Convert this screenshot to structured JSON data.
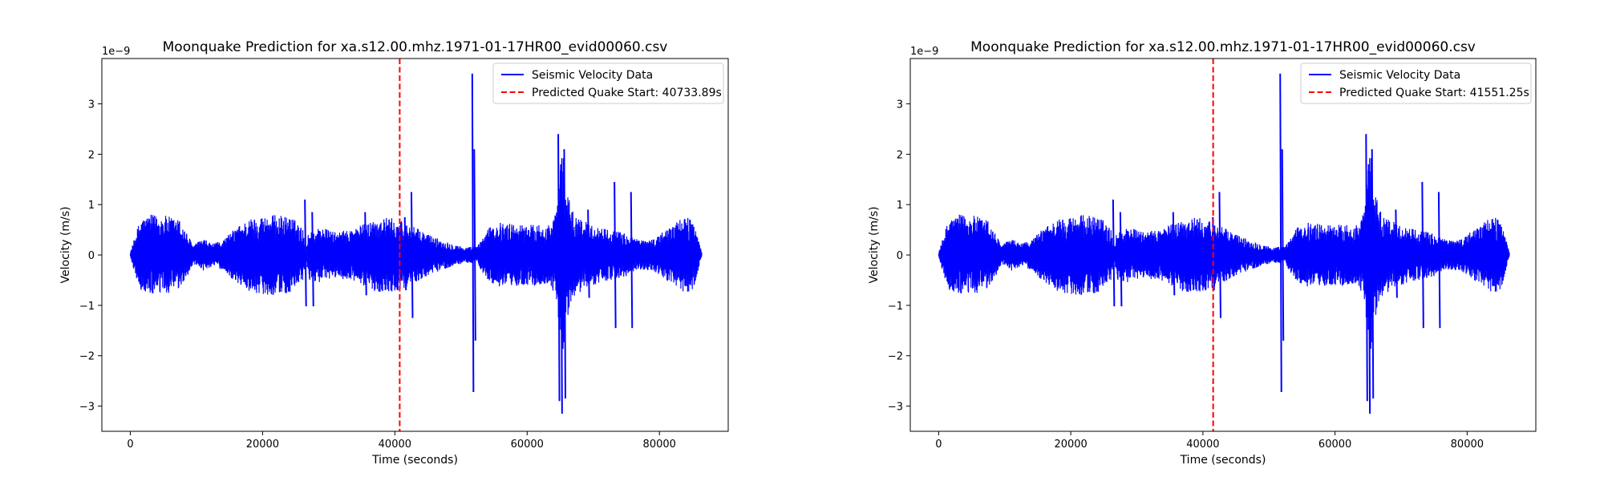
{
  "chart_data": [
    {
      "type": "line",
      "title": "Moonquake Prediction for xa.s12.00.mhz.1971-01-17HR00_evid00060.csv",
      "xlabel": "Time (seconds)",
      "ylabel": "Velocity (m/s)",
      "y_scale_label": "1e−9",
      "xlim": [
        -4300,
        90400
      ],
      "ylim": [
        -3.5,
        3.9
      ],
      "xticks": [
        0,
        20000,
        40000,
        60000,
        80000
      ],
      "xtick_labels": [
        "0",
        "20000",
        "40000",
        "60000",
        "80000"
      ],
      "yticks": [
        -3,
        -2,
        -1,
        0,
        1,
        2,
        3
      ],
      "ytick_labels": [
        "−3",
        "−2",
        "−1",
        "0",
        "1",
        "2",
        "3"
      ],
      "grid": false,
      "legend_position": "top-right",
      "series": [
        {
          "name": "Seismic Velocity Data",
          "color": "#0000ff",
          "style": "solid",
          "x_start": 0,
          "x_end": 86400,
          "envelope_points": [
            [
              0,
              0.05
            ],
            [
              1500,
              0.72
            ],
            [
              3000,
              0.8
            ],
            [
              5500,
              0.78
            ],
            [
              7500,
              0.7
            ],
            [
              8500,
              0.45
            ],
            [
              9500,
              0.2
            ],
            [
              11000,
              0.32
            ],
            [
              12500,
              0.22
            ],
            [
              14000,
              0.3
            ],
            [
              16000,
              0.55
            ],
            [
              18000,
              0.72
            ],
            [
              20000,
              0.78
            ],
            [
              22000,
              0.8
            ],
            [
              24500,
              0.75
            ],
            [
              26200,
              0.5
            ],
            [
              26500,
              0.05
            ],
            [
              27000,
              0.5
            ],
            [
              29000,
              0.55
            ],
            [
              31000,
              0.45
            ],
            [
              33000,
              0.5
            ],
            [
              35000,
              0.6
            ],
            [
              37000,
              0.72
            ],
            [
              39000,
              0.75
            ],
            [
              41000,
              0.68
            ],
            [
              43000,
              0.55
            ],
            [
              45000,
              0.42
            ],
            [
              47000,
              0.3
            ],
            [
              49000,
              0.22
            ],
            [
              50500,
              0.15
            ],
            [
              52500,
              0.18
            ],
            [
              54000,
              0.52
            ],
            [
              56000,
              0.65
            ],
            [
              58000,
              0.62
            ],
            [
              60000,
              0.6
            ],
            [
              62000,
              0.62
            ],
            [
              63500,
              0.6
            ],
            [
              64500,
              0.9
            ],
            [
              65200,
              2.2
            ],
            [
              66000,
              1.3
            ],
            [
              67000,
              0.85
            ],
            [
              69000,
              0.65
            ],
            [
              71000,
              0.55
            ],
            [
              73000,
              0.5
            ],
            [
              75000,
              0.42
            ],
            [
              77000,
              0.3
            ],
            [
              79000,
              0.32
            ],
            [
              81000,
              0.5
            ],
            [
              83000,
              0.72
            ],
            [
              85000,
              0.75
            ],
            [
              86400,
              0.05
            ]
          ],
          "spikes": [
            [
              26400,
              1.1,
              -1.02
            ],
            [
              27500,
              0.85,
              -1.02
            ],
            [
              35500,
              0.85,
              -0.8
            ],
            [
              41500,
              0.75,
              -0.7
            ],
            [
              42500,
              1.25,
              -1.25
            ],
            [
              51700,
              3.6,
              -2.72
            ],
            [
              52000,
              2.1,
              -1.7
            ],
            [
              64700,
              2.4,
              -2.9
            ],
            [
              65100,
              1.8,
              -3.15
            ],
            [
              65600,
              2.1,
              -2.85
            ],
            [
              69200,
              0.9,
              -0.85
            ],
            [
              73200,
              1.45,
              -1.45
            ],
            [
              75700,
              1.25,
              -1.45
            ]
          ]
        },
        {
          "name": "Predicted Quake Start: 40733.89s",
          "color": "#ff0000",
          "style": "dashed",
          "x": 40733.89
        }
      ]
    },
    {
      "type": "line",
      "title": "Moonquake Prediction for xa.s12.00.mhz.1971-01-17HR00_evid00060.csv",
      "xlabel": "Time (seconds)",
      "ylabel": "Velocity (m/s)",
      "y_scale_label": "1e−9",
      "xlim": [
        -4300,
        90400
      ],
      "ylim": [
        -3.5,
        3.9
      ],
      "xticks": [
        0,
        20000,
        40000,
        60000,
        80000
      ],
      "xtick_labels": [
        "0",
        "20000",
        "40000",
        "60000",
        "80000"
      ],
      "yticks": [
        -3,
        -2,
        -1,
        0,
        1,
        2,
        3
      ],
      "ytick_labels": [
        "−3",
        "−2",
        "−1",
        "0",
        "1",
        "2",
        "3"
      ],
      "grid": false,
      "legend_position": "top-right",
      "series": [
        {
          "name": "Seismic Velocity Data",
          "color": "#0000ff",
          "style": "solid",
          "x_start": 0,
          "x_end": 86400,
          "envelope_points": [
            [
              0,
              0.05
            ],
            [
              1500,
              0.72
            ],
            [
              3000,
              0.8
            ],
            [
              5500,
              0.78
            ],
            [
              7500,
              0.7
            ],
            [
              8500,
              0.45
            ],
            [
              9500,
              0.2
            ],
            [
              11000,
              0.32
            ],
            [
              12500,
              0.22
            ],
            [
              14000,
              0.3
            ],
            [
              16000,
              0.55
            ],
            [
              18000,
              0.72
            ],
            [
              20000,
              0.78
            ],
            [
              22000,
              0.8
            ],
            [
              24500,
              0.75
            ],
            [
              26200,
              0.5
            ],
            [
              26500,
              0.05
            ],
            [
              27000,
              0.5
            ],
            [
              29000,
              0.55
            ],
            [
              31000,
              0.45
            ],
            [
              33000,
              0.5
            ],
            [
              35000,
              0.6
            ],
            [
              37000,
              0.72
            ],
            [
              39000,
              0.75
            ],
            [
              41000,
              0.68
            ],
            [
              43000,
              0.55
            ],
            [
              45000,
              0.42
            ],
            [
              47000,
              0.3
            ],
            [
              49000,
              0.22
            ],
            [
              50500,
              0.15
            ],
            [
              52500,
              0.18
            ],
            [
              54000,
              0.52
            ],
            [
              56000,
              0.65
            ],
            [
              58000,
              0.62
            ],
            [
              60000,
              0.6
            ],
            [
              62000,
              0.62
            ],
            [
              63500,
              0.6
            ],
            [
              64500,
              0.9
            ],
            [
              65200,
              2.2
            ],
            [
              66000,
              1.3
            ],
            [
              67000,
              0.85
            ],
            [
              69000,
              0.65
            ],
            [
              71000,
              0.55
            ],
            [
              73000,
              0.5
            ],
            [
              75000,
              0.42
            ],
            [
              77000,
              0.3
            ],
            [
              79000,
              0.32
            ],
            [
              81000,
              0.5
            ],
            [
              83000,
              0.72
            ],
            [
              85000,
              0.75
            ],
            [
              86400,
              0.05
            ]
          ],
          "spikes": [
            [
              26400,
              1.1,
              -1.02
            ],
            [
              27500,
              0.85,
              -1.02
            ],
            [
              35500,
              0.85,
              -0.8
            ],
            [
              41500,
              0.75,
              -0.7
            ],
            [
              42500,
              1.25,
              -1.25
            ],
            [
              51700,
              3.6,
              -2.72
            ],
            [
              52000,
              2.1,
              -1.7
            ],
            [
              64700,
              2.4,
              -2.9
            ],
            [
              65100,
              1.8,
              -3.15
            ],
            [
              65600,
              2.1,
              -2.85
            ],
            [
              69200,
              0.9,
              -0.85
            ],
            [
              73200,
              1.45,
              -1.45
            ],
            [
              75700,
              1.25,
              -1.45
            ]
          ]
        },
        {
          "name": "Predicted Quake Start: 41551.25s",
          "color": "#ff0000",
          "style": "dashed",
          "x": 41551.25
        }
      ]
    }
  ]
}
